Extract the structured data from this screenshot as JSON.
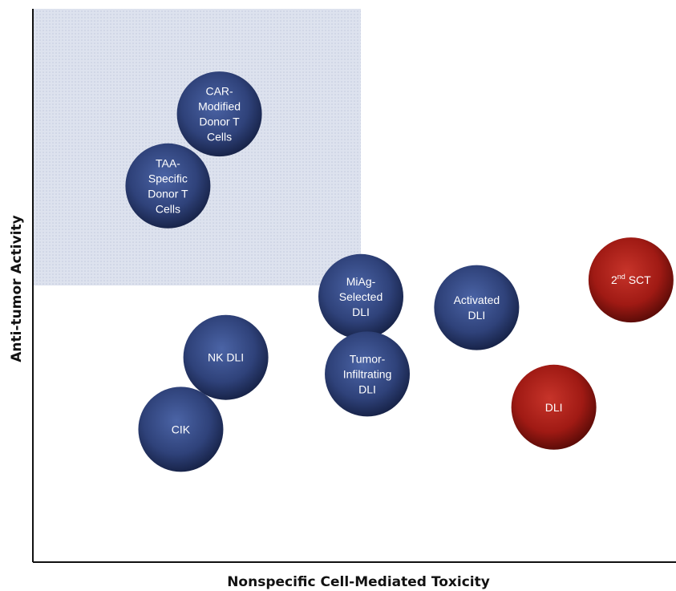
{
  "chart_data": {
    "type": "scatter",
    "title": "",
    "xlabel": "Nonspecific Cell-Mediated Toxicity",
    "ylabel": "Anti-tumor Activity",
    "xlim": [
      0,
      100
    ],
    "ylim": [
      0,
      100
    ],
    "grid": false,
    "highlight_region": {
      "x": [
        0,
        51
      ],
      "y": [
        50,
        100
      ]
    },
    "colors": {
      "blue": "#2f427a",
      "red": "#a01a14",
      "region": "#d9deeb"
    },
    "points": [
      {
        "lines": [
          "CAR-",
          "Modified",
          "Donor T",
          "Cells"
        ],
        "x": 29,
        "y": 81,
        "color": "blue"
      },
      {
        "lines": [
          "TAA-",
          "Specific",
          "Donor T",
          "Cells"
        ],
        "x": 21,
        "y": 68,
        "color": "blue"
      },
      {
        "lines": [
          "MiAg-",
          "Selected",
          "DLI"
        ],
        "x": 51,
        "y": 48,
        "color": "blue"
      },
      {
        "lines": [
          "Activated",
          "DLI"
        ],
        "x": 69,
        "y": 46,
        "color": "blue"
      },
      {
        "lines": [
          "2nd SCT"
        ],
        "x": 93,
        "y": 51,
        "color": "red"
      },
      {
        "lines": [
          "NK DLI"
        ],
        "x": 30,
        "y": 37,
        "color": "blue"
      },
      {
        "lines": [
          "Tumor-",
          "Infiltrating",
          "DLI"
        ],
        "x": 52,
        "y": 34,
        "color": "blue"
      },
      {
        "lines": [
          "CIK"
        ],
        "x": 23,
        "y": 24,
        "color": "blue"
      },
      {
        "lines": [
          "DLI"
        ],
        "x": 81,
        "y": 28,
        "color": "red"
      }
    ]
  }
}
